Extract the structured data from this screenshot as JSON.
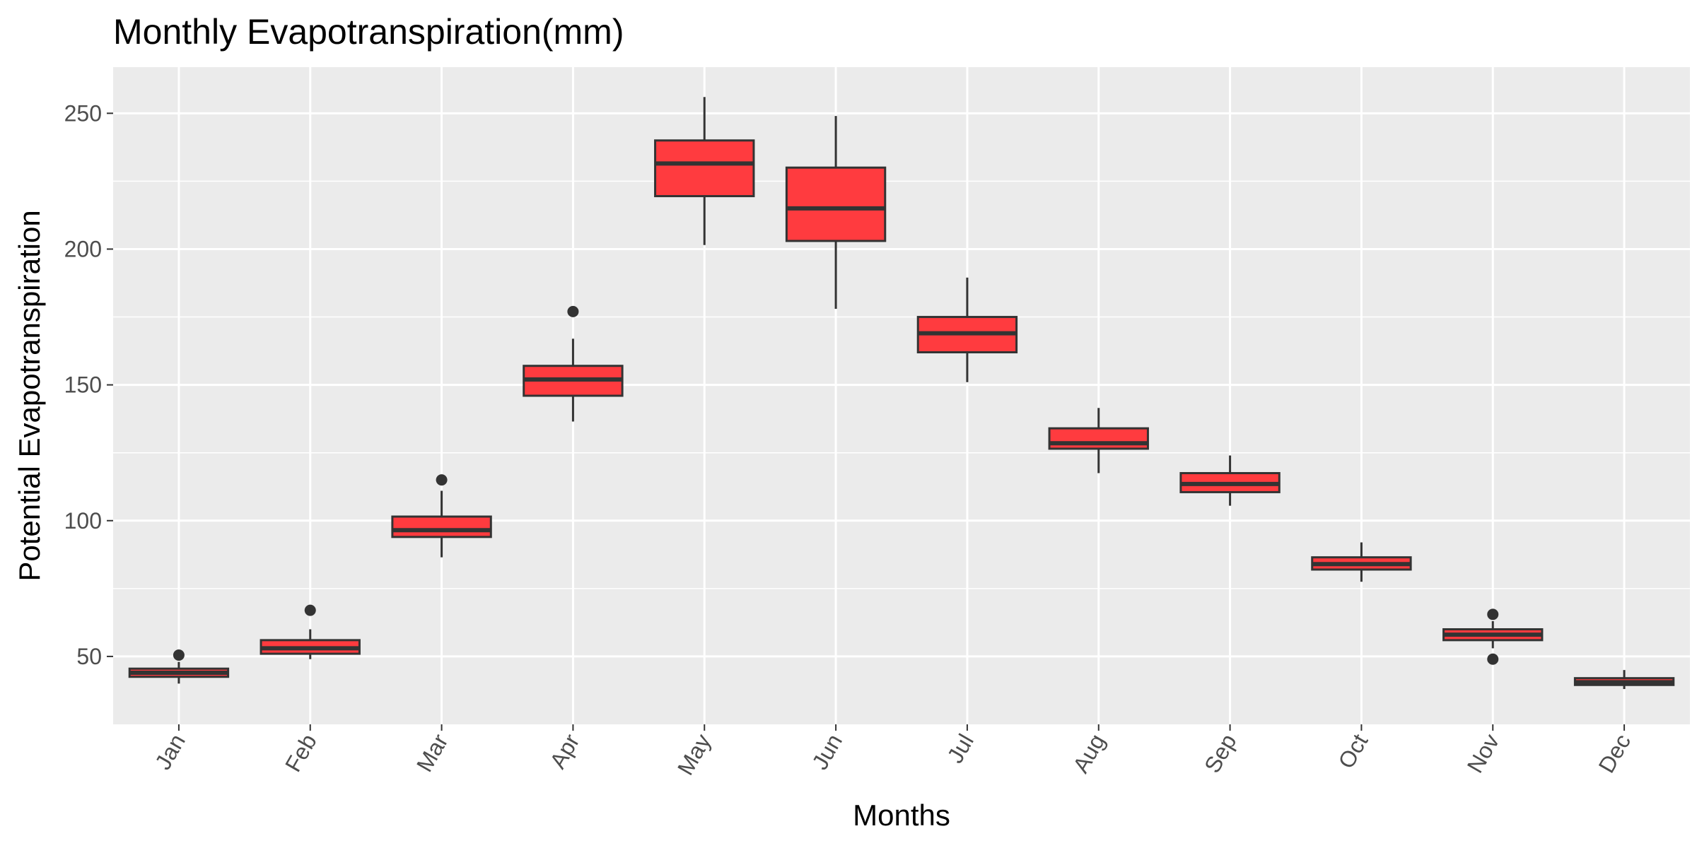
{
  "chart_data": {
    "type": "boxplot",
    "title": "Monthly Evapotranspiration(mm)",
    "xlabel": "Months",
    "ylabel": "Potential Evapotranspiration",
    "ylim": [
      25,
      267
    ],
    "yticks": [
      50,
      100,
      150,
      200,
      250
    ],
    "grid": true,
    "legend": "none",
    "colors": {
      "fill": "#ff3b3f",
      "line": "#333333",
      "panel": "#ebebeb",
      "grid": "#ffffff"
    },
    "categories": [
      "Jan",
      "Feb",
      "Mar",
      "Apr",
      "May",
      "Jun",
      "Jul",
      "Aug",
      "Sep",
      "Oct",
      "Nov",
      "Dec"
    ],
    "boxes": [
      {
        "min": 40,
        "q1": 42.5,
        "median": 44,
        "q3": 45.5,
        "max": 48,
        "outliers": [
          50.5
        ]
      },
      {
        "min": 49,
        "q1": 51,
        "median": 53,
        "q3": 56,
        "max": 60,
        "outliers": [
          67
        ]
      },
      {
        "min": 86.5,
        "q1": 94,
        "median": 96.5,
        "q3": 101.5,
        "max": 111,
        "outliers": [
          115
        ]
      },
      {
        "min": 136.5,
        "q1": 146,
        "median": 152,
        "q3": 157,
        "max": 167,
        "outliers": [
          177
        ]
      },
      {
        "min": 201.5,
        "q1": 219.5,
        "median": 231.5,
        "q3": 240,
        "max": 256,
        "outliers": []
      },
      {
        "min": 178,
        "q1": 203,
        "median": 215,
        "q3": 230,
        "max": 249,
        "outliers": []
      },
      {
        "min": 151,
        "q1": 162,
        "median": 169,
        "q3": 175,
        "max": 189.5,
        "outliers": []
      },
      {
        "min": 117.5,
        "q1": 126.5,
        "median": 128.5,
        "q3": 134,
        "max": 141.5,
        "outliers": []
      },
      {
        "min": 105.5,
        "q1": 110.5,
        "median": 113.5,
        "q3": 117.5,
        "max": 124,
        "outliers": []
      },
      {
        "min": 77.5,
        "q1": 82,
        "median": 84,
        "q3": 86.5,
        "max": 92,
        "outliers": []
      },
      {
        "min": 53,
        "q1": 56,
        "median": 58,
        "q3": 60,
        "max": 63,
        "outliers": [
          65.5,
          49
        ]
      },
      {
        "min": 38,
        "q1": 39.5,
        "median": 40.5,
        "q3": 42,
        "max": 45,
        "outliers": []
      }
    ]
  }
}
